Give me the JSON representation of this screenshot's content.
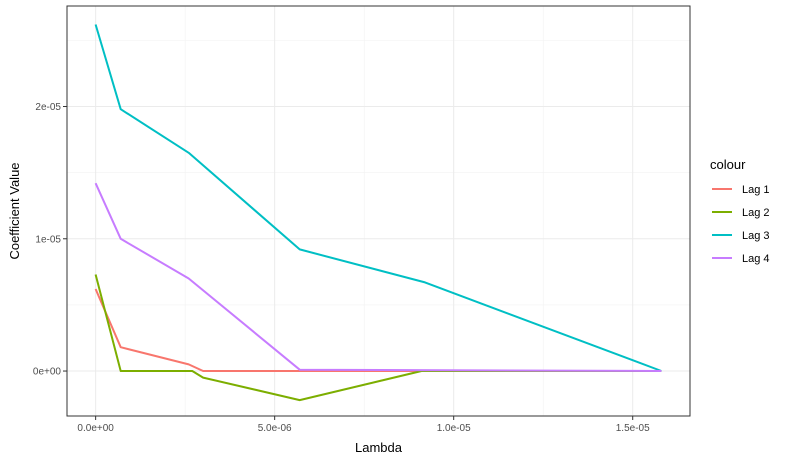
{
  "chart_data": {
    "type": "line",
    "title": "",
    "xlabel": "Lambda",
    "ylabel": "Coefficient Value",
    "xlim": [
      -8e-07,
      1.66e-05
    ],
    "ylim": [
      -3.4e-06,
      2.76e-05
    ],
    "x_ticks": [
      0,
      5e-06,
      1e-05,
      1.5e-05
    ],
    "x_tick_labels": [
      "0.0e+00",
      "5.0e-06",
      "1.0e-05",
      "1.5e-05"
    ],
    "y_ticks": [
      0,
      1e-05,
      2e-05
    ],
    "y_tick_labels": [
      "0e+00",
      "1e-05",
      "2e-05"
    ],
    "grid": true,
    "legend": {
      "title": "colour",
      "position": "right"
    },
    "series": [
      {
        "name": "Lag 1",
        "color": "#F8766D",
        "points": [
          [
            0,
            6.2e-06
          ],
          [
            7e-07,
            1.8e-06
          ],
          [
            2.6e-06,
            5e-07
          ],
          [
            3e-06,
            0
          ],
          [
            1.58e-05,
            0
          ]
        ]
      },
      {
        "name": "Lag 2",
        "color": "#7CAE00",
        "points": [
          [
            0,
            7.3e-06
          ],
          [
            7e-07,
            0
          ],
          [
            2.7e-06,
            0
          ],
          [
            3e-06,
            -5e-07
          ],
          [
            5.7e-06,
            -2.2e-06
          ],
          [
            9.1e-06,
            0
          ],
          [
            1.58e-05,
            0
          ]
        ]
      },
      {
        "name": "Lag 3",
        "color": "#00BFC4",
        "points": [
          [
            0,
            2.62e-05
          ],
          [
            7e-07,
            1.98e-05
          ],
          [
            2.6e-06,
            1.65e-05
          ],
          [
            5.7e-06,
            9.2e-06
          ],
          [
            9.2e-06,
            6.7e-06
          ],
          [
            1.58e-05,
            0
          ]
        ]
      },
      {
        "name": "Lag 4",
        "color": "#C77CFF",
        "points": [
          [
            0,
            1.42e-05
          ],
          [
            7e-07,
            1e-05
          ],
          [
            2.6e-06,
            7e-06
          ],
          [
            5.7e-06,
            1e-07
          ],
          [
            1.58e-05,
            0
          ]
        ]
      }
    ]
  }
}
